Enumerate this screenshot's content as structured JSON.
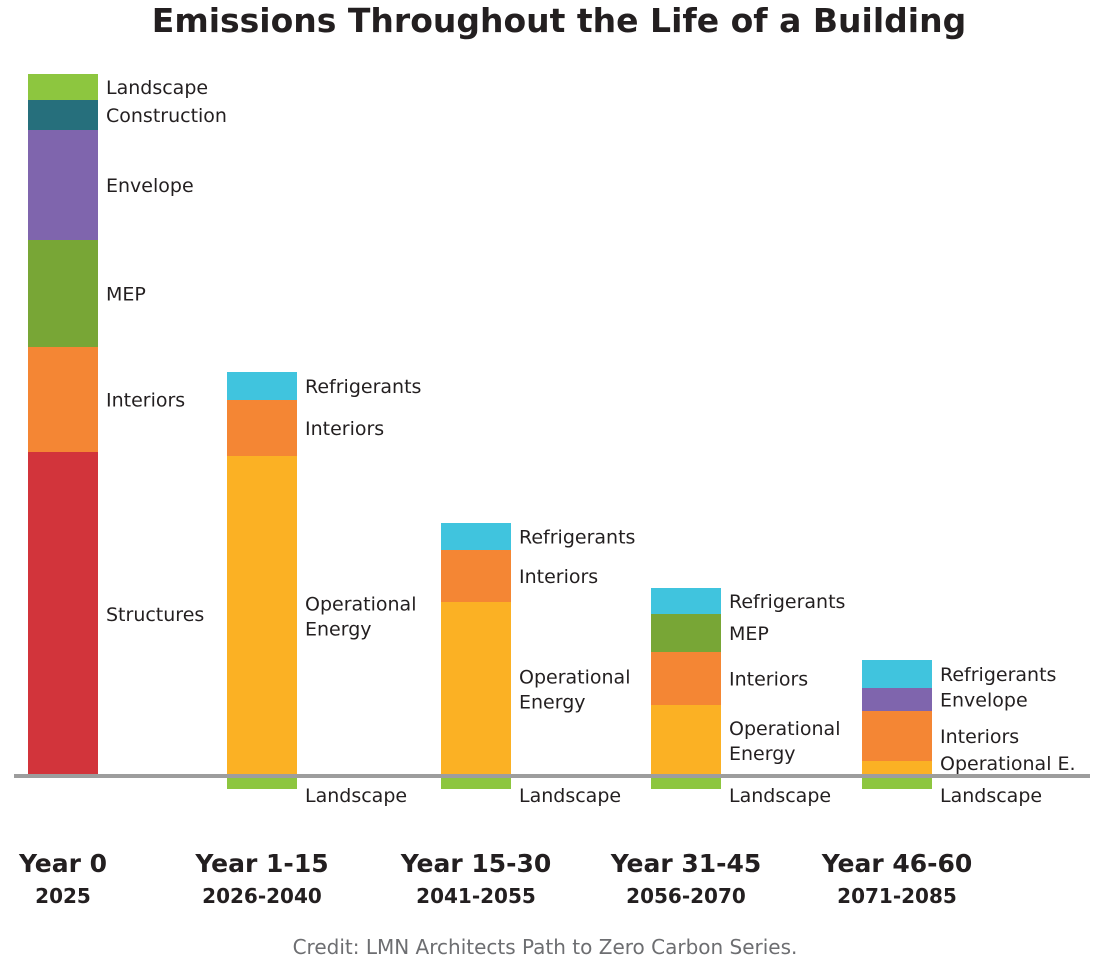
{
  "chart_data": {
    "type": "stacked-bar",
    "title": "Emissions Throughout the Life of a Building",
    "credit": "Credit: LMN Architects Path to Zero Carbon Series.",
    "xlabel": "",
    "ylabel": "",
    "grid": false,
    "legend": "inline-labels",
    "ylim": [
      -2,
      72
    ],
    "categories": [
      {
        "label": "Year 0",
        "sub": "2025"
      },
      {
        "label": "Year 1-15",
        "sub": "2026-2040"
      },
      {
        "label": "Year 15-30",
        "sub": "2041-2055"
      },
      {
        "label": "Year 31-45",
        "sub": "2056-2070"
      },
      {
        "label": "Year 46-60",
        "sub": "2071-2085"
      }
    ],
    "colors": {
      "Landscape": "#8dc63f",
      "Construction": "#266f7c",
      "Envelope": "#7f65ad",
      "MEP": "#78a636",
      "Interiors": "#f48634",
      "Structures": "#d2343b",
      "Operational Energy": "#fbb124",
      "Refrigerants": "#40c4de",
      "baseline": "#9d9d9d"
    },
    "bars": [
      {
        "segments": [
          {
            "name": "Structures",
            "label": "Structures",
            "value": 32.4
          },
          {
            "name": "Interiors",
            "label": "Interiors",
            "value": 10.5
          },
          {
            "name": "MEP",
            "label": "MEP",
            "value": 10.7
          },
          {
            "name": "Envelope",
            "label": "Envelope",
            "value": 11.0
          },
          {
            "name": "Construction",
            "label": "Construction",
            "value": 3.0
          },
          {
            "name": "Landscape",
            "label": "Landscape",
            "value": 2.6
          }
        ]
      },
      {
        "segments": [
          {
            "name": "Landscape",
            "label": "Landscape",
            "value": -1.3
          },
          {
            "name": "Operational Energy",
            "label": "Operational\nEnergy",
            "value": 32.0
          },
          {
            "name": "Interiors",
            "label": "Interiors",
            "value": 5.6
          },
          {
            "name": "Refrigerants",
            "label": "Refrigerants",
            "value": 2.8
          }
        ]
      },
      {
        "segments": [
          {
            "name": "Landscape",
            "label": "Landscape",
            "value": -1.3
          },
          {
            "name": "Operational Energy",
            "label": "Operational\nEnergy",
            "value": 17.4
          },
          {
            "name": "Interiors",
            "label": "Interiors",
            "value": 5.2
          },
          {
            "name": "Refrigerants",
            "label": "Refrigerants",
            "value": 2.7
          }
        ]
      },
      {
        "segments": [
          {
            "name": "Landscape",
            "label": "Landscape",
            "value": -1.3
          },
          {
            "name": "Operational Energy",
            "label": "Operational\nEnergy",
            "value": 7.1
          },
          {
            "name": "Interiors",
            "label": "Interiors",
            "value": 5.3
          },
          {
            "name": "MEP",
            "label": "MEP",
            "value": 3.8
          },
          {
            "name": "Refrigerants",
            "label": "Refrigerants",
            "value": 2.6
          }
        ]
      },
      {
        "segments": [
          {
            "name": "Landscape",
            "label": "Landscape",
            "value": -1.3
          },
          {
            "name": "Operational Energy",
            "label": "Operational E.",
            "value": 1.5
          },
          {
            "name": "Interiors",
            "label": "Interiors",
            "value": 5.0
          },
          {
            "name": "Envelope",
            "label": "Envelope",
            "value": 2.3
          },
          {
            "name": "Refrigerants",
            "label": "Refrigerants",
            "value": 2.8
          }
        ]
      }
    ]
  }
}
